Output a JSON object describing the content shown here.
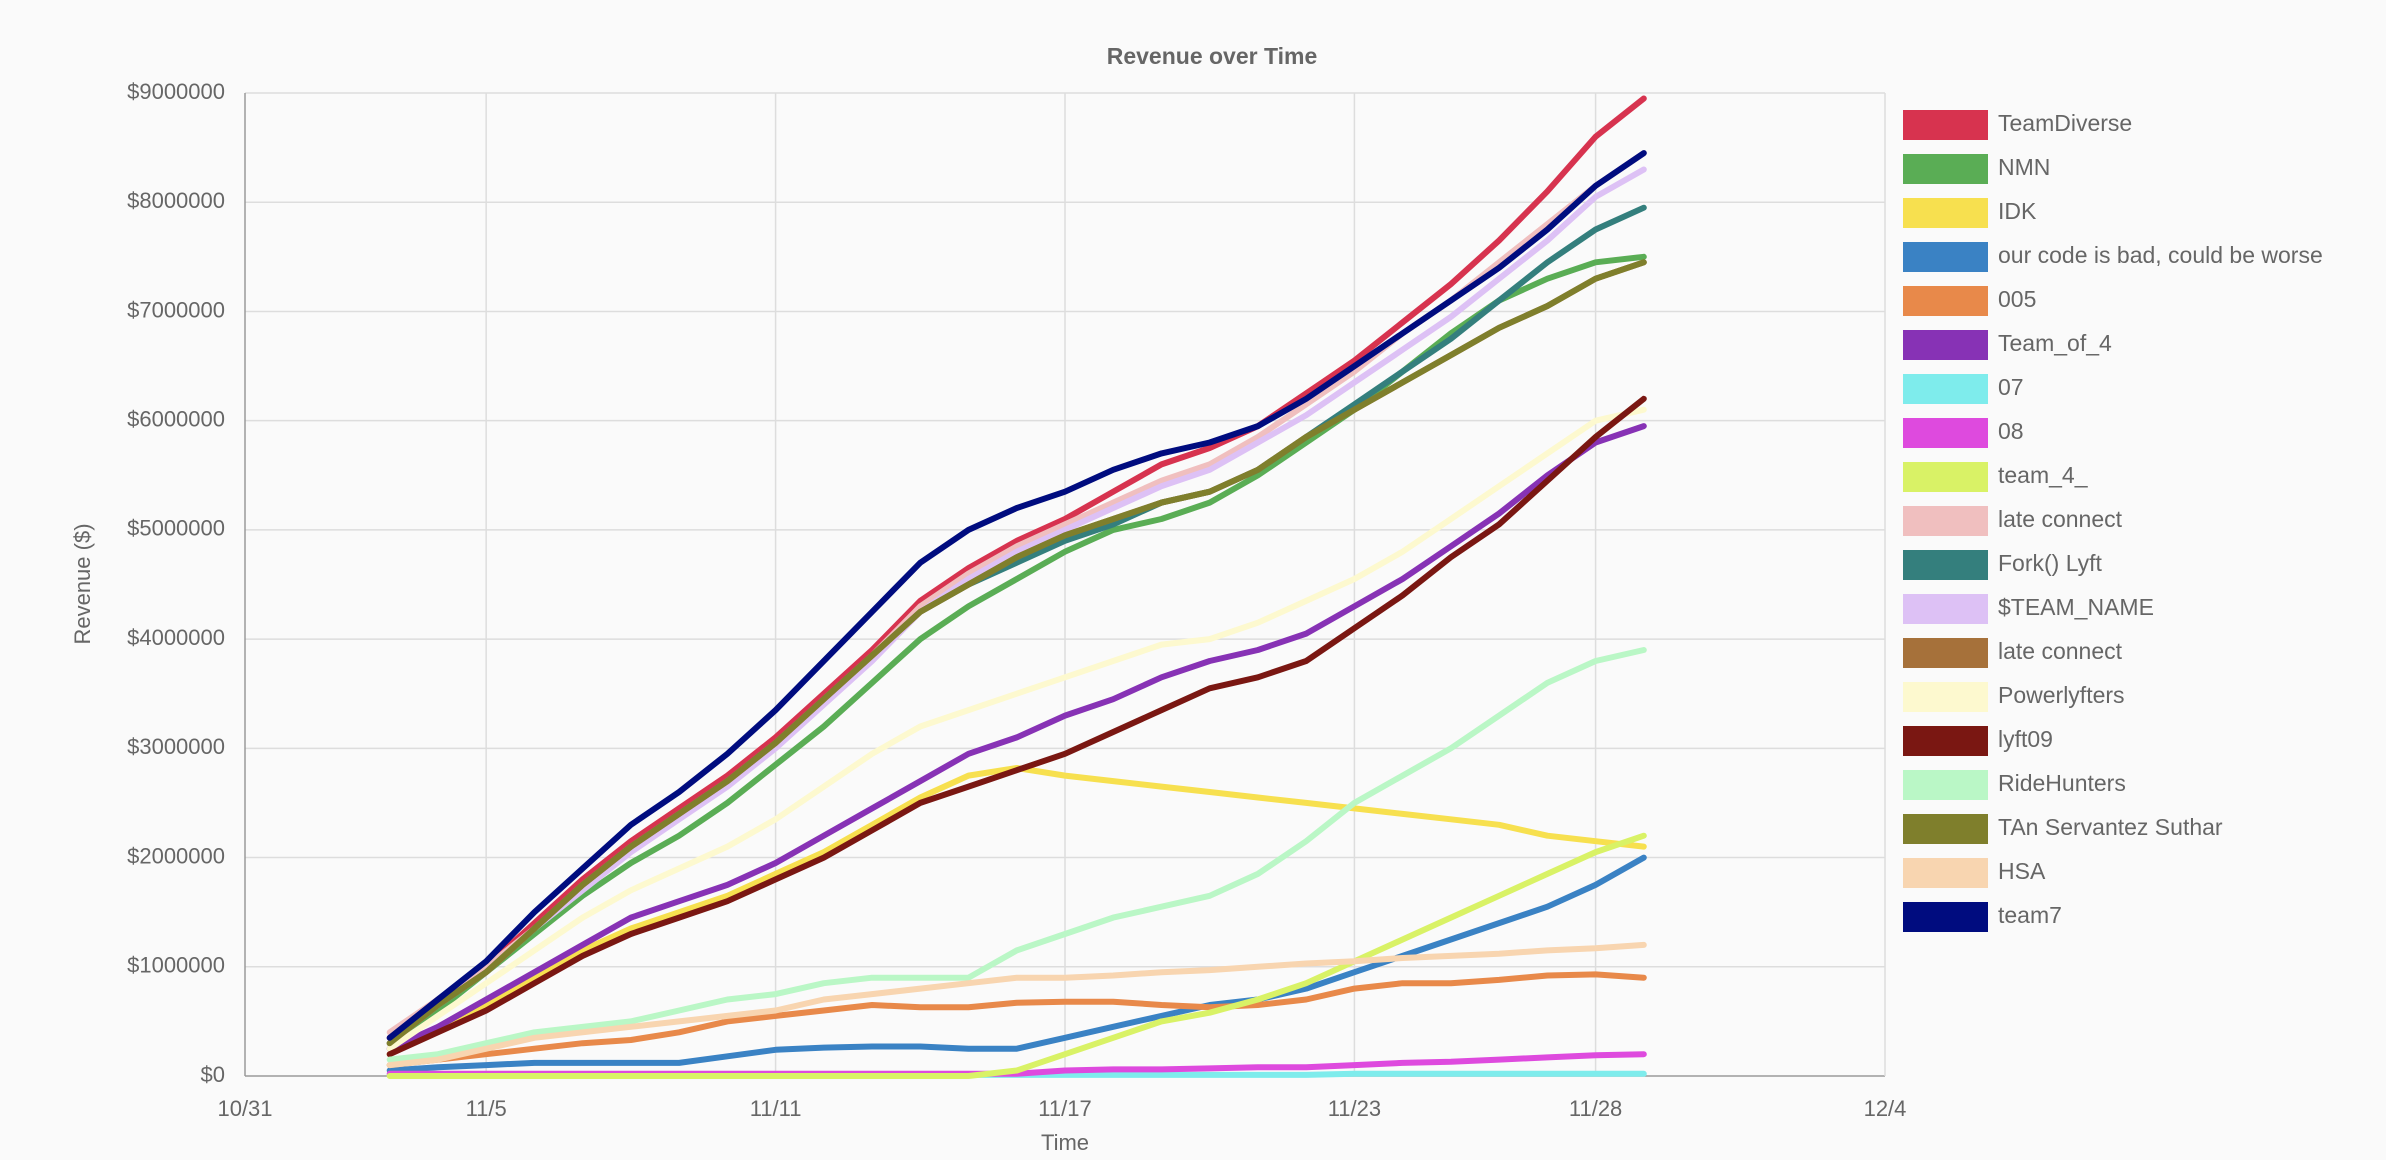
{
  "chart_data": {
    "type": "line",
    "title": "Revenue over Time",
    "x_label": "Time",
    "y_label": "Revenue ($)",
    "grid": true,
    "legend": "right",
    "xlim": [
      "10/31",
      "12/4"
    ],
    "xticks": [
      "10/31",
      "11/5",
      "11/11",
      "11/17",
      "11/23",
      "11/28",
      "12/4"
    ],
    "ylim": [
      0,
      9000000
    ],
    "yticks": [
      {
        "value": 0,
        "label": "$0"
      },
      {
        "value": 1000000,
        "label": "$1000000"
      },
      {
        "value": 2000000,
        "label": "$2000000"
      },
      {
        "value": 3000000,
        "label": "$3000000"
      },
      {
        "value": 4000000,
        "label": "$4000000"
      },
      {
        "value": 5000000,
        "label": "$5000000"
      },
      {
        "value": 6000000,
        "label": "$6000000"
      },
      {
        "value": 7000000,
        "label": "$7000000"
      },
      {
        "value": 8000000,
        "label": "$8000000"
      },
      {
        "value": 9000000,
        "label": "$9000000"
      }
    ],
    "x": [
      "11/3",
      "11/4",
      "11/5",
      "11/6",
      "11/7",
      "11/8",
      "11/9",
      "11/10",
      "11/11",
      "11/12",
      "11/13",
      "11/14",
      "11/15",
      "11/16",
      "11/17",
      "11/18",
      "11/19",
      "11/20",
      "11/21",
      "11/22",
      "11/23",
      "11/24",
      "11/25",
      "11/26",
      "11/27",
      "11/28",
      "11/29"
    ],
    "series": [
      {
        "name": "TeamDiverse",
        "color": "#d7334f",
        "values": [
          350000,
          700000,
          1000000,
          1400000,
          1800000,
          2150000,
          2450000,
          2750000,
          3100000,
          3500000,
          3900000,
          4350000,
          4650000,
          4900000,
          5100000,
          5350000,
          5600000,
          5750000,
          5950000,
          6250000,
          6550000,
          6900000,
          7250000,
          7650000,
          8100000,
          8600000,
          8950000
        ]
      },
      {
        "name": "NMN",
        "color": "#5aad55",
        "values": [
          300000,
          600000,
          950000,
          1300000,
          1650000,
          1950000,
          2200000,
          2500000,
          2850000,
          3200000,
          3600000,
          4000000,
          4300000,
          4550000,
          4800000,
          5000000,
          5100000,
          5250000,
          5500000,
          5800000,
          6100000,
          6450000,
          6800000,
          7100000,
          7300000,
          7450000,
          7500000
        ]
      },
      {
        "name": "IDK",
        "color": "#f7e04f",
        "values": [
          200000,
          450000,
          650000,
          900000,
          1150000,
          1350000,
          1500000,
          1650000,
          1850000,
          2050000,
          2300000,
          2550000,
          2750000,
          2820000,
          2750000,
          2700000,
          2650000,
          2600000,
          2550000,
          2500000,
          2450000,
          2400000,
          2350000,
          2300000,
          2200000,
          2150000,
          2100000
        ]
      },
      {
        "name": "our code is bad, could be worse",
        "color": "#3a82c4",
        "values": [
          50000,
          80000,
          100000,
          120000,
          120000,
          120000,
          120000,
          180000,
          240000,
          260000,
          270000,
          270000,
          250000,
          250000,
          350000,
          450000,
          550000,
          650000,
          700000,
          800000,
          950000,
          1100000,
          1250000,
          1400000,
          1550000,
          1750000,
          2000000
        ]
      },
      {
        "name": "005",
        "color": "#e8894a",
        "values": [
          100000,
          150000,
          200000,
          250000,
          300000,
          330000,
          400000,
          500000,
          550000,
          600000,
          650000,
          630000,
          630000,
          670000,
          680000,
          680000,
          650000,
          630000,
          650000,
          700000,
          800000,
          850000,
          850000,
          880000,
          920000,
          930000,
          900000
        ]
      },
      {
        "name": "Team_of_4",
        "color": "#8732b5",
        "values": [
          250000,
          450000,
          700000,
          950000,
          1200000,
          1450000,
          1600000,
          1750000,
          1950000,
          2200000,
          2450000,
          2700000,
          2950000,
          3100000,
          3300000,
          3450000,
          3650000,
          3800000,
          3900000,
          4050000,
          4300000,
          4550000,
          4850000,
          5150000,
          5500000,
          5800000,
          5950000
        ]
      },
      {
        "name": "07",
        "color": "#7eecec",
        "values": [
          10000,
          10000,
          10000,
          10000,
          10000,
          10000,
          10000,
          10000,
          10000,
          10000,
          10000,
          10000,
          10000,
          10000,
          10000,
          10000,
          10000,
          10000,
          10000,
          10000,
          20000,
          20000,
          20000,
          20000,
          20000,
          20000,
          20000
        ]
      },
      {
        "name": "08",
        "color": "#de4ade",
        "values": [
          20000,
          20000,
          20000,
          20000,
          20000,
          20000,
          20000,
          20000,
          20000,
          20000,
          20000,
          20000,
          20000,
          20000,
          50000,
          60000,
          60000,
          70000,
          80000,
          80000,
          100000,
          120000,
          130000,
          150000,
          170000,
          190000,
          200000
        ]
      },
      {
        "name": "team_4_",
        "color": "#d9f266",
        "values": [
          0,
          0,
          0,
          0,
          0,
          0,
          0,
          0,
          0,
          0,
          0,
          0,
          0,
          50000,
          200000,
          350000,
          500000,
          580000,
          700000,
          850000,
          1050000,
          1250000,
          1450000,
          1650000,
          1850000,
          2050000,
          2200000
        ]
      },
      {
        "name": "late connect",
        "color": "#f0bfbf",
        "values": [
          400000,
          700000,
          1000000,
          1350000,
          1750000,
          2100000,
          2400000,
          2700000,
          3050000,
          3450000,
          3850000,
          4300000,
          4600000,
          4850000,
          5050000,
          5250000,
          5450000,
          5600000,
          5850000,
          6150000,
          6450000,
          6800000,
          7100000,
          7450000,
          7800000,
          8150000,
          8450000
        ]
      },
      {
        "name": "Fork() Lyft",
        "color": "#347f7d",
        "values": [
          300000,
          650000,
          950000,
          1350000,
          1750000,
          2100000,
          2400000,
          2700000,
          3050000,
          3450000,
          3850000,
          4250000,
          4500000,
          4700000,
          4900000,
          5050000,
          5250000,
          5350000,
          5550000,
          5850000,
          6150000,
          6450000,
          6750000,
          7100000,
          7450000,
          7750000,
          7950000
        ]
      },
      {
        "name": "$TEAM_NAME",
        "color": "#ddc1f5",
        "values": [
          300000,
          650000,
          950000,
          1350000,
          1700000,
          2050000,
          2350000,
          2650000,
          3000000,
          3400000,
          3800000,
          4250000,
          4550000,
          4800000,
          5000000,
          5200000,
          5400000,
          5550000,
          5800000,
          6050000,
          6350000,
          6650000,
          6950000,
          7300000,
          7650000,
          8050000,
          8300000
        ]
      },
      {
        "name": "late connect",
        "color": "#a6713a",
        "values": [
          300000,
          650000,
          950000,
          1350000,
          1750000,
          2100000,
          2400000,
          2700000,
          3050000,
          3450000,
          3850000,
          4250000,
          4500000,
          4750000,
          4950000,
          5100000,
          5250000,
          5350000,
          5550000,
          5850000,
          6100000,
          6350000,
          6600000,
          6850000,
          7050000,
          7300000,
          7450000
        ]
      },
      {
        "name": "Powerlyfters",
        "color": "#fdf9cf",
        "values": [
          250000,
          550000,
          850000,
          1150000,
          1450000,
          1700000,
          1900000,
          2100000,
          2350000,
          2650000,
          2950000,
          3200000,
          3350000,
          3500000,
          3650000,
          3800000,
          3950000,
          4000000,
          4150000,
          4350000,
          4550000,
          4800000,
          5100000,
          5400000,
          5700000,
          6000000,
          6100000
        ]
      },
      {
        "name": "lyft09",
        "color": "#7a1712",
        "values": [
          200000,
          400000,
          600000,
          850000,
          1100000,
          1300000,
          1450000,
          1600000,
          1800000,
          2000000,
          2250000,
          2500000,
          2650000,
          2800000,
          2950000,
          3150000,
          3350000,
          3550000,
          3650000,
          3800000,
          4100000,
          4400000,
          4750000,
          5050000,
          5450000,
          5850000,
          6200000
        ]
      },
      {
        "name": "RideHunters",
        "color": "#baf7c6",
        "values": [
          150000,
          200000,
          300000,
          400000,
          450000,
          500000,
          600000,
          700000,
          750000,
          850000,
          900000,
          900000,
          900000,
          1150000,
          1300000,
          1450000,
          1550000,
          1650000,
          1850000,
          2150000,
          2500000,
          2750000,
          3000000,
          3300000,
          3600000,
          3800000,
          3900000
        ]
      },
      {
        "name": "TAn Servantez Suthar",
        "color": "#7f7f2c",
        "values": [
          300000,
          650000,
          950000,
          1350000,
          1750000,
          2100000,
          2400000,
          2700000,
          3050000,
          3450000,
          3850000,
          4250000,
          4500000,
          4750000,
          4950000,
          5100000,
          5250000,
          5350000,
          5550000,
          5850000,
          6100000,
          6350000,
          6600000,
          6850000,
          7050000,
          7300000,
          7450000
        ]
      },
      {
        "name": "HSA",
        "color": "#f8d5b0",
        "values": [
          100000,
          150000,
          250000,
          350000,
          400000,
          450000,
          500000,
          550000,
          600000,
          700000,
          750000,
          800000,
          850000,
          900000,
          900000,
          920000,
          950000,
          970000,
          1000000,
          1030000,
          1050000,
          1080000,
          1100000,
          1120000,
          1150000,
          1170000,
          1200000
        ]
      },
      {
        "name": "team7",
        "color": "#000c7f",
        "values": [
          350000,
          700000,
          1050000,
          1500000,
          1900000,
          2300000,
          2600000,
          2950000,
          3350000,
          3800000,
          4250000,
          4700000,
          5000000,
          5200000,
          5350000,
          5550000,
          5700000,
          5800000,
          5950000,
          6200000,
          6500000,
          6800000,
          7100000,
          7400000,
          7750000,
          8150000,
          8450000
        ]
      }
    ]
  }
}
